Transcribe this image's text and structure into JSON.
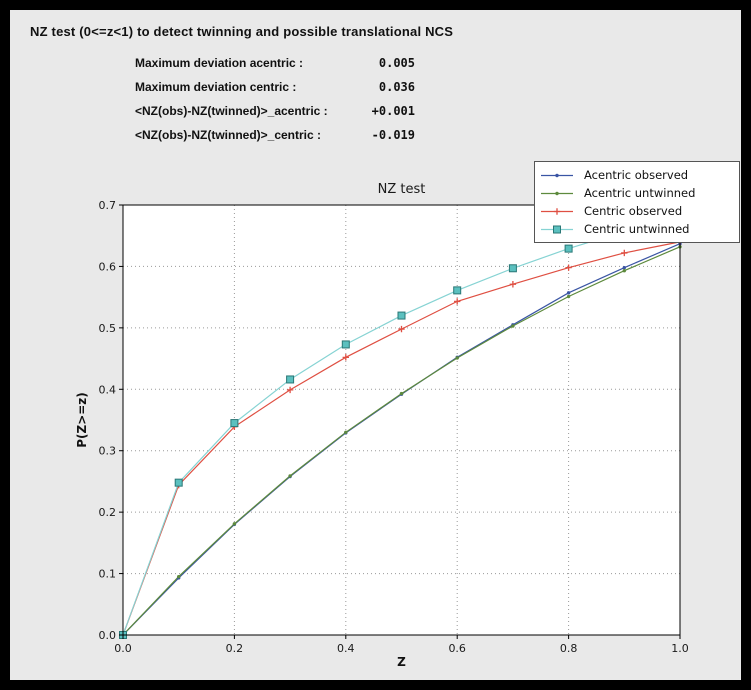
{
  "header": {
    "title": "NZ test (0<=z<1) to detect twinning and possible translational NCS"
  },
  "stats": [
    {
      "label": "Maximum deviation acentric :",
      "value": "0.005"
    },
    {
      "label": "Maximum deviation centric :",
      "value": "0.036"
    },
    {
      "label": "<NZ(obs)-NZ(twinned)>_acentric :",
      "value": "+0.001"
    },
    {
      "label": "<NZ(obs)-NZ(twinned)>_centric :",
      "value": "-0.019"
    }
  ],
  "chart_data": {
    "type": "line",
    "title": "NZ test",
    "xlabel": "Z",
    "ylabel": "P(Z>=z)",
    "xlim": [
      0.0,
      1.0
    ],
    "ylim": [
      0.0,
      0.7
    ],
    "xticks": [
      0.0,
      0.2,
      0.4,
      0.6,
      0.8,
      1.0
    ],
    "yticks": [
      0.0,
      0.1,
      0.2,
      0.3,
      0.4,
      0.5,
      0.6,
      0.7
    ],
    "grid": true,
    "grid_style": "dotted",
    "legend_position": "upper right",
    "x": [
      0.0,
      0.1,
      0.2,
      0.3,
      0.4,
      0.5,
      0.6,
      0.7,
      0.8,
      0.9,
      1.0
    ],
    "series": [
      {
        "name": "Acentric observed",
        "color": "#3a55a4",
        "marker": "dot",
        "values": [
          0.0,
          0.093,
          0.18,
          0.258,
          0.329,
          0.392,
          0.452,
          0.505,
          0.557,
          0.598,
          0.637
        ]
      },
      {
        "name": "Acentric untwinned",
        "color": "#5d8a3d",
        "marker": "dot",
        "values": [
          0.0,
          0.095,
          0.181,
          0.259,
          0.33,
          0.393,
          0.451,
          0.503,
          0.551,
          0.593,
          0.632
        ]
      },
      {
        "name": "Centric observed",
        "color": "#df4f42",
        "marker": "plus",
        "values": [
          0.0,
          0.244,
          0.339,
          0.399,
          0.452,
          0.498,
          0.543,
          0.571,
          0.598,
          0.622,
          0.64
        ]
      },
      {
        "name": "Centric untwinned",
        "color": "#86d3d3",
        "marker": "square",
        "marker_fill": "#5bc0bf",
        "marker_edge": "#2a7776",
        "values": [
          0.0,
          0.248,
          0.345,
          0.416,
          0.473,
          0.52,
          0.561,
          0.597,
          0.629,
          0.657,
          0.683
        ]
      }
    ]
  }
}
